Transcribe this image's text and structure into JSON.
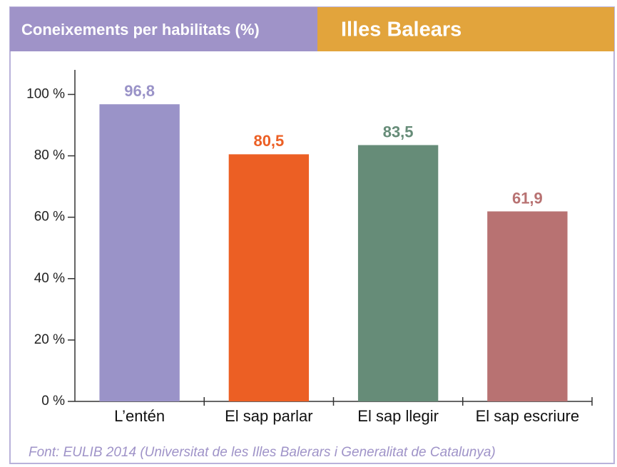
{
  "chart_data": {
    "type": "bar",
    "title": "Coneixements per habilitats (%)",
    "subtitle": "Illes Balears",
    "categories": [
      "L’entén",
      "El sap parlar",
      "El sap llegir",
      "El sap escriure"
    ],
    "values": [
      96.8,
      80.5,
      83.5,
      61.9
    ],
    "value_labels": [
      "96,8",
      "80,5",
      "83,5",
      "61,9"
    ],
    "colors": [
      "#9a93c8",
      "#ec5f24",
      "#668c78",
      "#b87272"
    ],
    "ylim": [
      0,
      108
    ],
    "yticks": [
      {
        "value": 0,
        "label": "0 %"
      },
      {
        "value": 20,
        "label": "20 %"
      },
      {
        "value": 40,
        "label": "40 %"
      },
      {
        "value": 60,
        "label": "60 %"
      },
      {
        "value": 80,
        "label": "80 %"
      },
      {
        "value": 100,
        "label": "100 %"
      }
    ],
    "grid": false,
    "source": "Font: EULIB 2014 (Universitat de les Illes Balerars i Generalitat de Catalunya)"
  }
}
